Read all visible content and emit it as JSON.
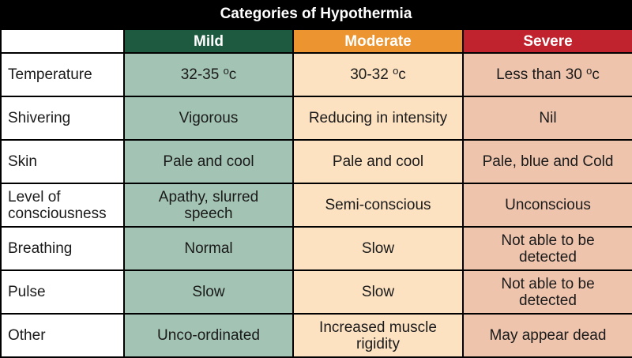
{
  "title": "Categories of Hypothermia",
  "colors": {
    "mild_header": "#1e5a40",
    "moderate_header": "#ec9530",
    "severe_header": "#c0232e",
    "mild_cell": "#a3c4b4",
    "moderate_cell": "#fde2c2",
    "severe_cell": "#efc4ad"
  },
  "columns": [
    "Mild",
    "Moderate",
    "Severe"
  ],
  "rows": [
    {
      "label": "Temperature",
      "mild": {
        "value": "32-35 ",
        "sup": "o",
        "unit": "c"
      },
      "moderate": {
        "value": "30-32 ",
        "sup": "o",
        "unit": "c"
      },
      "severe": {
        "value": "Less than 30 ",
        "sup": "o",
        "unit": "c"
      }
    },
    {
      "label": "Shivering",
      "mild": "Vigorous",
      "moderate": "Reducing in intensity",
      "severe": "Nil"
    },
    {
      "label": "Skin",
      "mild": "Pale and cool",
      "moderate": "Pale and cool",
      "severe": "Pale, blue and Cold"
    },
    {
      "label_line1": "Level of",
      "label_line2": "consciousness",
      "mild_line1": "Apathy, slurred",
      "mild_line2": "speech",
      "moderate": "Semi-conscious",
      "severe": "Unconscious"
    },
    {
      "label": "Breathing",
      "mild": "Normal",
      "moderate": "Slow",
      "severe_line1": "Not able to be",
      "severe_line2": "detected"
    },
    {
      "label": "Pulse",
      "mild": "Slow",
      "moderate": "Slow",
      "severe_line1": "Not able to be",
      "severe_line2": "detected"
    },
    {
      "label": "Other",
      "mild": "Unco-ordinated",
      "moderate_line1": "Increased muscle",
      "moderate_line2": "rigidity",
      "severe": "May appear dead"
    }
  ]
}
